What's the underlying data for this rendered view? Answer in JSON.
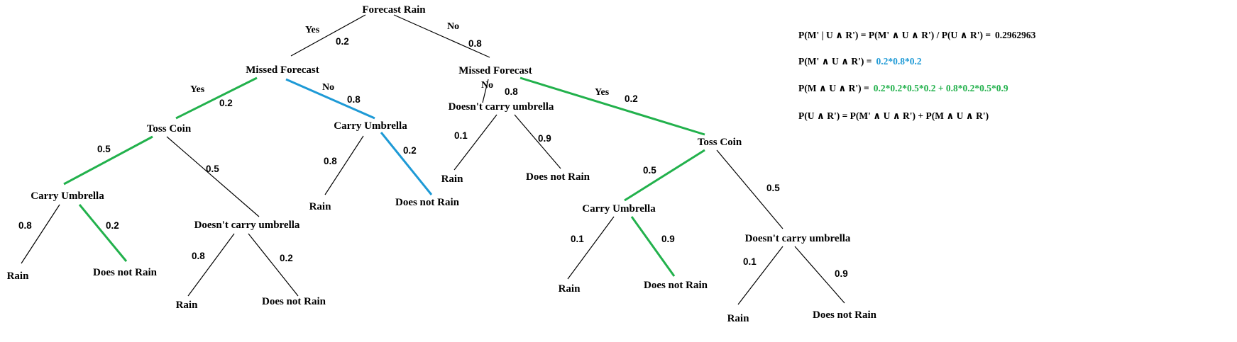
{
  "colors": {
    "default": "#000000",
    "green": "#22b14c",
    "blue": "#1e9ad6"
  },
  "nodes": {
    "root": "Forecast Rain",
    "missed_yes": "Missed Forecast",
    "missed_no": "Missed Forecast",
    "toss_left": "Toss Coin",
    "carry_top_mid": "Carry Umbrella",
    "dont_carry_top": "Doesn't carry umbrella",
    "toss_right": "Toss Coin",
    "carry_left": "Carry Umbrella",
    "dont_carry_left": "Doesn't carry umbrella",
    "carry_right": "Carry Umbrella",
    "dont_carry_right": "Doesn't carry umbrella",
    "leaf_rain_1": "Rain",
    "leaf_norain_1": "Does not Rain",
    "leaf_rain_2": "Rain",
    "leaf_norain_2": "Does not Rain",
    "leaf_rain_3": "Rain",
    "leaf_norain_3": "Does not Rain",
    "leaf_rain_4": "Rain",
    "leaf_norain_4": "Does not Rain",
    "leaf_rain_5": "Rain",
    "leaf_norain_5": "Does not Rain",
    "leaf_rain_6": "Rain",
    "leaf_norain_6": "Does not Rain"
  },
  "edge_labels": {
    "root_yes_word": "Yes",
    "root_yes_prob": "0.2",
    "root_no_word": "No",
    "root_no_prob": "0.8",
    "l_yes_word": "Yes",
    "l_yes_prob": "0.2",
    "l_no_word": "No",
    "l_no_prob": "0.8",
    "tc_left_prob_a": "0.5",
    "tc_left_prob_b": "0.5",
    "cu_left_rain": "0.8",
    "cu_left_norain": "0.2",
    "dcu_left_rain": "0.8",
    "dcu_left_norain": "0.2",
    "cu_mid_rain": "0.8",
    "cu_mid_norain": "0.2",
    "r_no_word": "No",
    "r_no_prob": "0.8",
    "r_yes_word": "Yes",
    "r_yes_prob": "0.2",
    "dcu_top_rain": "0.1",
    "dcu_top_norain": "0.9",
    "tc_right_prob_a": "0.5",
    "tc_right_prob_b": "0.5",
    "cu_right_rain": "0.1",
    "cu_right_norain": "0.9",
    "dcu_right_rain": "0.1",
    "dcu_right_norain": "0.9"
  },
  "formulas": {
    "f1_text": "P(M' | U ∧ R') = P(M' ∧ U ∧ R') / P(U ∧ R') =",
    "f1_value": "0.2962963",
    "f2_text": "P(M' ∧ U ∧ R') =",
    "f2_value": "0.2*0.8*0.2",
    "f3_text": "P(M ∧  U ∧ R') =",
    "f3_value": "0.2*0.2*0.5*0.2 + 0.8*0.2*0.5*0.9",
    "f4_text": "P(U ∧ R') = P(M' ∧ U ∧ R') + P(M  ∧ U ∧ R')"
  }
}
